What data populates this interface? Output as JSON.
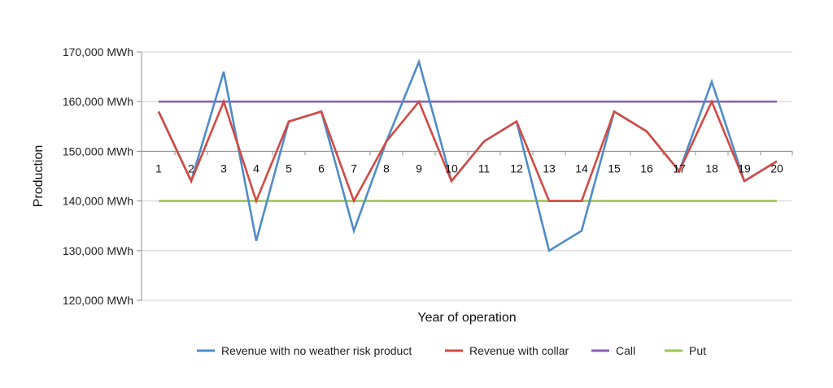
{
  "colors": {
    "no_weather": "#4f8cc9",
    "collar": "#d24a43",
    "call": "#8a5fb0",
    "put": "#9ac653",
    "grid": "#d0d0d0",
    "axis": "#8c8c8c"
  },
  "chart_data": {
    "type": "line",
    "xlabel": "Year of operation",
    "ylabel": "Production",
    "ylim": [
      120000,
      170000
    ],
    "yticks": [
      {
        "value": 170000,
        "label": "170,000 MWh"
      },
      {
        "value": 160000,
        "label": "160,000 MWh"
      },
      {
        "value": 150000,
        "label": "150,000 MWh"
      },
      {
        "value": 140000,
        "label": "140,000 MWh"
      },
      {
        "value": 130000,
        "label": "130,000 MWh"
      },
      {
        "value": 120000,
        "label": "120,000 MWh"
      }
    ],
    "x_axis_value": 150000,
    "grid": true,
    "legend_position": "bottom",
    "categories": [
      "1",
      "2",
      "3",
      "4",
      "5",
      "6",
      "7",
      "8",
      "9",
      "10",
      "11",
      "12",
      "13",
      "14",
      "15",
      "16",
      "17",
      "18",
      "19",
      "20"
    ],
    "series": [
      {
        "name": "Revenue with no weather risk product",
        "color_key": "no_weather",
        "values": [
          158000,
          144000,
          166000,
          132000,
          156000,
          158000,
          134000,
          152000,
          168000,
          144000,
          152000,
          156000,
          130000,
          134000,
          158000,
          154000,
          146000,
          164000,
          144000,
          148000
        ]
      },
      {
        "name": "Revenue with collar",
        "color_key": "collar",
        "values": [
          158000,
          144000,
          160000,
          140000,
          156000,
          158000,
          140000,
          152000,
          160000,
          144000,
          152000,
          156000,
          140000,
          140000,
          158000,
          154000,
          146000,
          160000,
          144000,
          148000
        ]
      },
      {
        "name": "Call",
        "color_key": "call",
        "values": [
          160000,
          160000,
          160000,
          160000,
          160000,
          160000,
          160000,
          160000,
          160000,
          160000,
          160000,
          160000,
          160000,
          160000,
          160000,
          160000,
          160000,
          160000,
          160000,
          160000
        ]
      },
      {
        "name": "Put",
        "color_key": "put",
        "values": [
          140000,
          140000,
          140000,
          140000,
          140000,
          140000,
          140000,
          140000,
          140000,
          140000,
          140000,
          140000,
          140000,
          140000,
          140000,
          140000,
          140000,
          140000,
          140000,
          140000
        ]
      }
    ]
  }
}
